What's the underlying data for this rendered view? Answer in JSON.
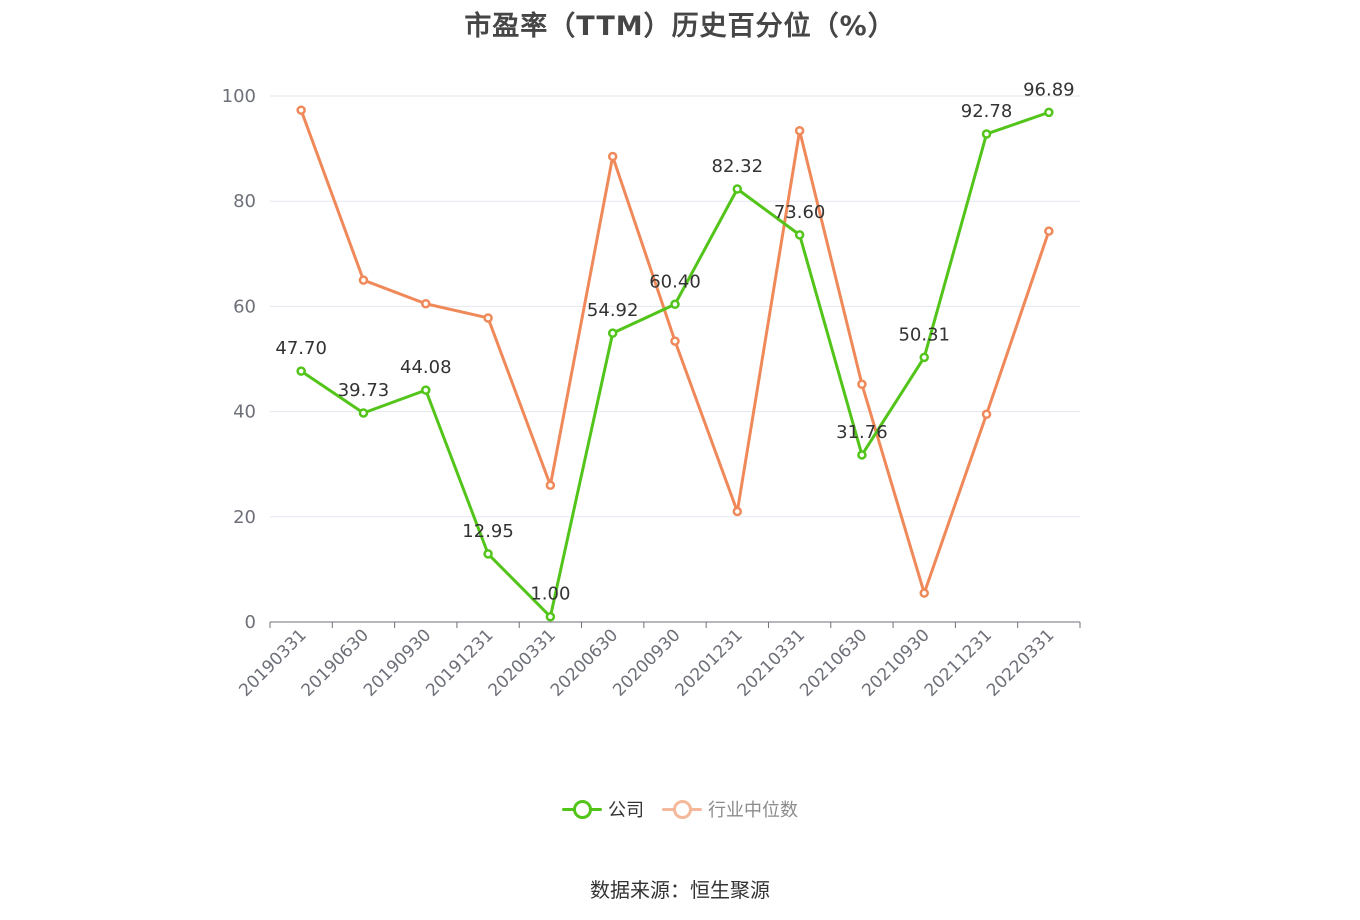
{
  "chart_data": {
    "type": "line",
    "title": "市盈率（TTM）历史百分位（%）",
    "categories": [
      "20190331",
      "20190630",
      "20190930",
      "20191231",
      "20200331",
      "20200630",
      "20200930",
      "20201231",
      "20210331",
      "20210630",
      "20210930",
      "20211231",
      "20220331"
    ],
    "series": [
      {
        "name": "公司",
        "color": "#52c41a",
        "values": [
          47.7,
          39.73,
          44.08,
          12.95,
          1.0,
          54.92,
          60.4,
          82.32,
          73.6,
          31.76,
          50.31,
          92.78,
          96.89
        ],
        "labels": [
          "47.70",
          "39.73",
          "44.08",
          "12.95",
          "1.00",
          "54.92",
          "60.40",
          "82.32",
          "73.60",
          "31.76",
          "50.31",
          "92.78",
          "96.89"
        ]
      },
      {
        "name": "行业中位数",
        "color": "#f0895a",
        "values": [
          97.3,
          65.0,
          60.5,
          57.8,
          26.0,
          88.5,
          53.4,
          21.0,
          93.4,
          45.2,
          5.5,
          39.5,
          74.3
        ]
      }
    ],
    "ylim": [
      0,
      100
    ],
    "yticks": [
      0,
      20,
      40,
      60,
      80,
      100
    ],
    "grid": true,
    "legend_position": "bottom"
  },
  "legend": {
    "company": "公司",
    "industry": "行业中位数"
  },
  "source": "数据来源：恒生聚源"
}
